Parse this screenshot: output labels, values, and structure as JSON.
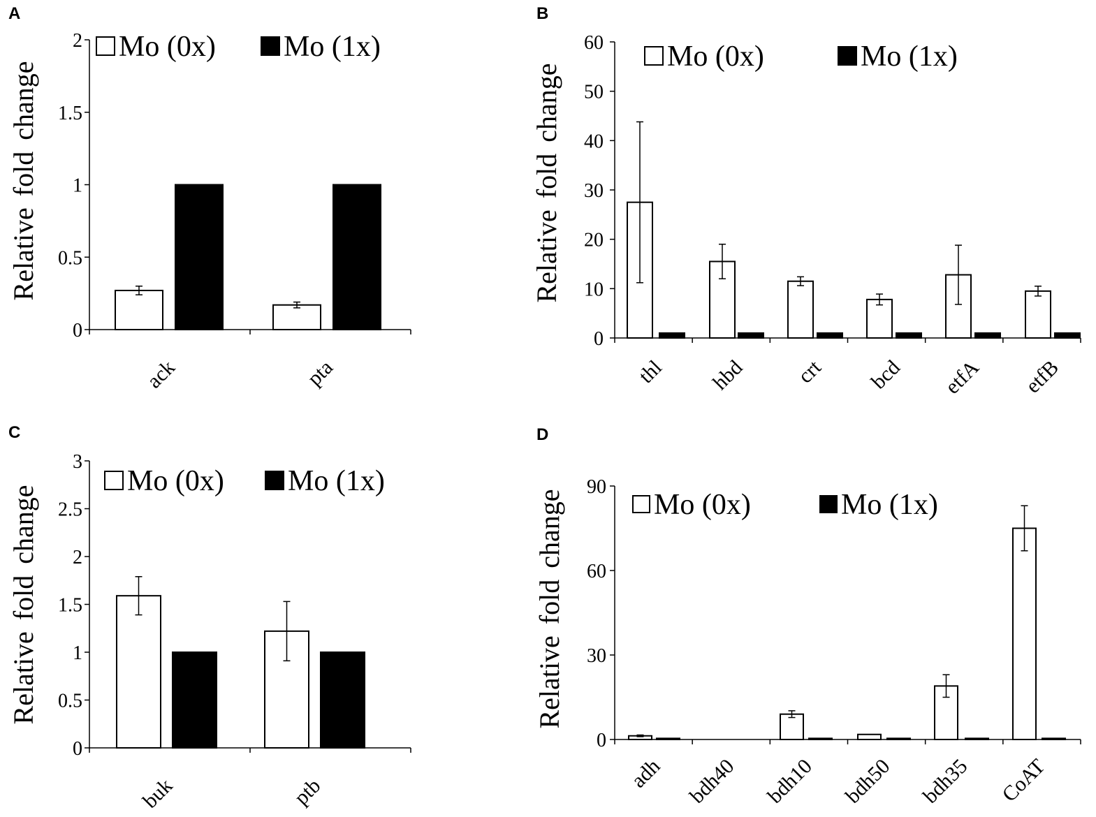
{
  "chart_data": [
    {
      "panel": "A",
      "type": "bar",
      "ylabel": "Relative fold change",
      "ylim": [
        0,
        2
      ],
      "yticks": [
        0,
        0.5,
        1,
        1.5,
        2
      ],
      "ytick_labels": [
        "0",
        "0.5",
        "1",
        "1.5",
        "2"
      ],
      "categories": [
        "ack",
        "pta"
      ],
      "series": [
        {
          "name": "Mo (0x)",
          "values": [
            0.27,
            0.17
          ],
          "errors": [
            0.03,
            0.02
          ]
        },
        {
          "name": "Mo (1x)",
          "values": [
            1,
            1
          ],
          "errors": [
            0,
            0
          ]
        }
      ],
      "legend": "top"
    },
    {
      "panel": "B",
      "type": "bar",
      "ylabel": "Relative fold change",
      "ylim": [
        0,
        60
      ],
      "yticks": [
        0,
        10,
        20,
        30,
        40,
        50,
        60
      ],
      "ytick_labels": [
        "0",
        "10",
        "20",
        "30",
        "40",
        "50",
        "60"
      ],
      "categories": [
        "thl",
        "hbd",
        "crt",
        "bcd",
        "etfA",
        "etfB"
      ],
      "series": [
        {
          "name": "Mo (0x)",
          "values": [
            27.5,
            15.5,
            11.5,
            7.8,
            12.8,
            9.5
          ],
          "errors": [
            16.3,
            3.5,
            0.9,
            1.1,
            6,
            1
          ]
        },
        {
          "name": "Mo (1x)",
          "values": [
            1,
            1,
            1,
            1,
            1,
            1
          ],
          "errors": [
            0,
            0,
            0,
            0,
            0,
            0
          ]
        }
      ],
      "legend": "top"
    },
    {
      "panel": "C",
      "type": "bar",
      "ylabel": "Relative fold change",
      "ylim": [
        0,
        3
      ],
      "yticks": [
        0,
        0.5,
        1,
        1.5,
        2,
        2.5,
        3
      ],
      "ytick_labels": [
        "0",
        "0.5",
        "1",
        "1.5",
        "2",
        "2.5",
        "3"
      ],
      "categories": [
        "buk",
        "ptb"
      ],
      "series": [
        {
          "name": "Mo (0x)",
          "values": [
            1.59,
            1.22
          ],
          "errors": [
            0.2,
            0.31
          ]
        },
        {
          "name": "Mo (1x)",
          "values": [
            1,
            1
          ],
          "errors": [
            0,
            0
          ]
        }
      ],
      "legend": "top"
    },
    {
      "panel": "D",
      "type": "bar",
      "ylabel": "Relative fold change",
      "ylim": [
        0,
        90
      ],
      "yticks": [
        0,
        30,
        60,
        90
      ],
      "ytick_labels": [
        "0",
        "30",
        "60",
        "90"
      ],
      "categories": [
        "adh",
        "bdh40",
        "bdh10",
        "bdh50",
        "bdh35",
        "CoAT"
      ],
      "series": [
        {
          "name": "Mo (0x)",
          "values": [
            1.3,
            0,
            9,
            1.8,
            19,
            75
          ],
          "errors": [
            0.3,
            0,
            1.2,
            0,
            4,
            8
          ]
        },
        {
          "name": "Mo (1x)",
          "values": [
            0.4,
            0,
            0.4,
            0.4,
            0.4,
            0.4
          ],
          "errors": [
            0,
            0,
            0,
            0,
            0,
            0
          ]
        }
      ],
      "legend": "top"
    }
  ],
  "colors": {
    "mo0x_fill": "#ffffff",
    "mo1x_fill": "#000000",
    "stroke": "#000000"
  }
}
